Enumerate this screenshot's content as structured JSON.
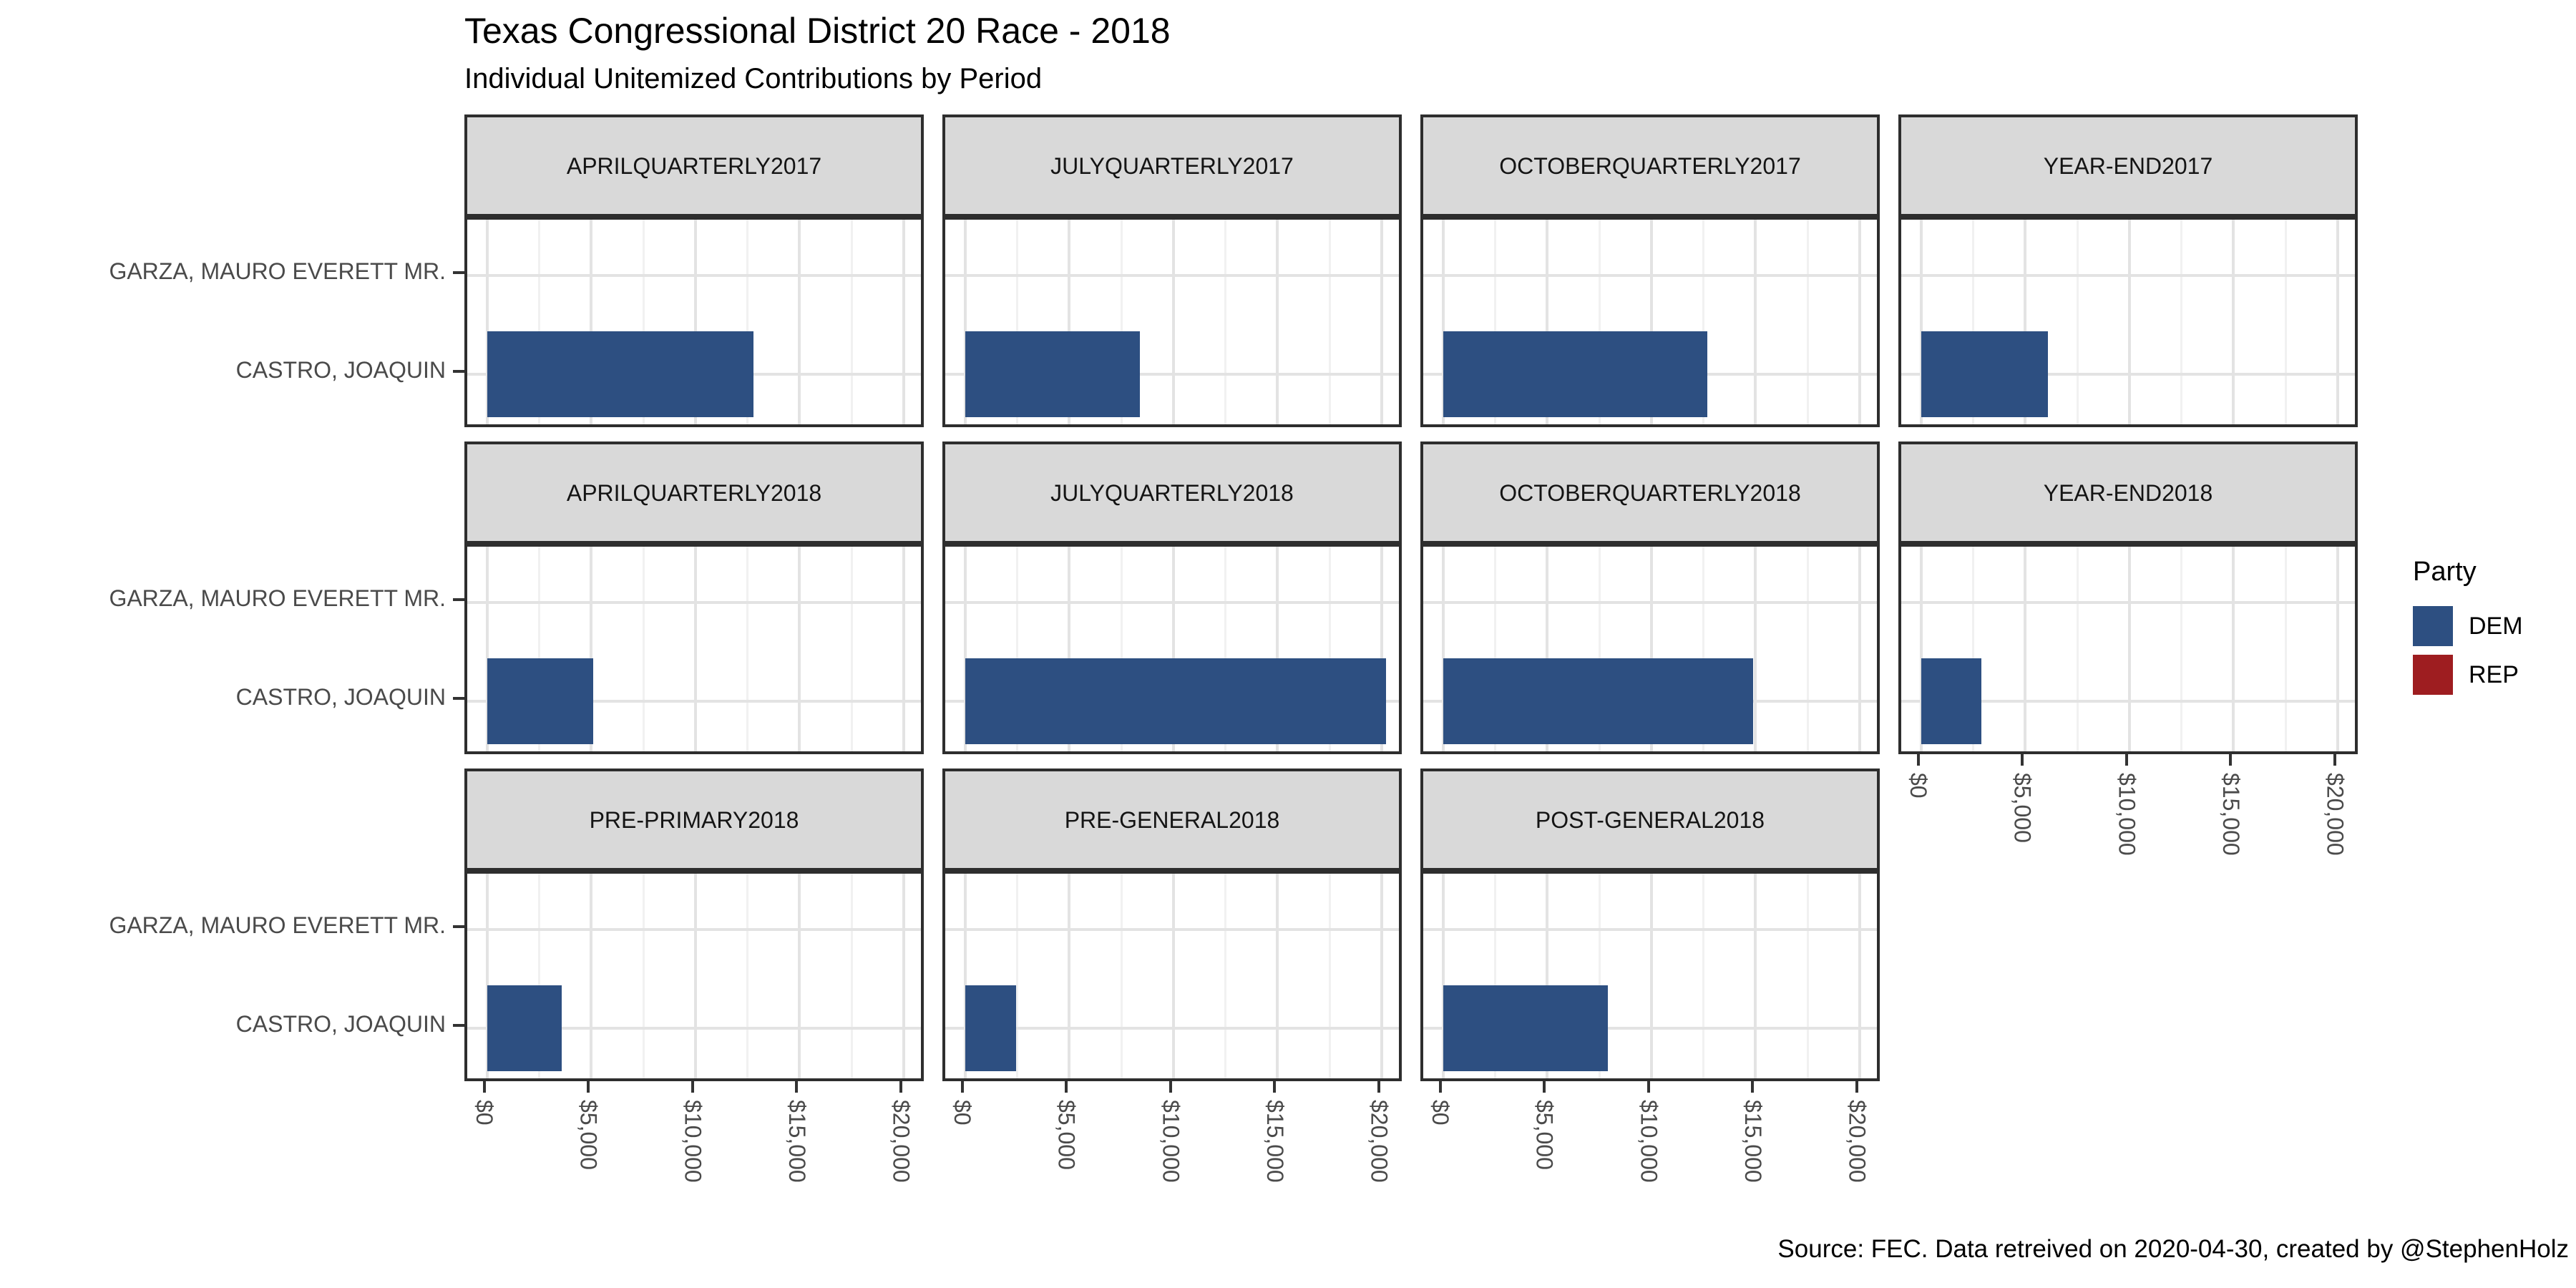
{
  "caption": "Source: FEC. Data retreived on 2020-04-30, created by @StephenHolz",
  "legend": {
    "title": "Party",
    "items": [
      {
        "label": "DEM",
        "color": "#2D4F81"
      },
      {
        "label": "REP",
        "color": "#9E1D20"
      }
    ]
  },
  "chart_data": {
    "type": "bar",
    "orientation": "horizontal",
    "title": "Texas Congressional District 20 Race - 2018",
    "subtitle": "Individual Unitemized Contributions by Period",
    "categories_top_to_bottom": [
      "GARZA, MAURO EVERETT MR.",
      "CASTRO, JOAQUIN"
    ],
    "party_colors": {
      "DEM": "#2D4F81",
      "REP": "#9E1D20"
    },
    "x_axis": {
      "tick_labels": [
        "$0",
        "$5,000",
        "$10,000",
        "$15,000",
        "$20,000"
      ],
      "tick_values": [
        0,
        5000,
        10000,
        15000,
        20000
      ],
      "minor_gridlines": [
        2500,
        7500,
        12500,
        17500
      ],
      "range": [
        -1010,
        21200
      ],
      "label_rotation_deg": 90
    },
    "grid": true,
    "legend_position": "right",
    "facet_grid": {
      "nrow": 3,
      "ncol": 4
    },
    "facets": [
      {
        "row": 0,
        "col": 0,
        "label": "APRIL QUARTERLY 2017",
        "values": {
          "GARZA, MAURO EVERETT MR.": 0,
          "CASTRO, JOAQUIN": 12800
        }
      },
      {
        "row": 0,
        "col": 1,
        "label": "JULY QUARTERLY 2017",
        "values": {
          "GARZA, MAURO EVERETT MR.": 0,
          "CASTRO, JOAQUIN": 8400
        }
      },
      {
        "row": 0,
        "col": 2,
        "label": "OCTOBER QUARTERLY 2017",
        "values": {
          "GARZA, MAURO EVERETT MR.": 0,
          "CASTRO, JOAQUIN": 12700
        }
      },
      {
        "row": 0,
        "col": 3,
        "label": "YEAR-END 2017",
        "values": {
          "GARZA, MAURO EVERETT MR.": 0,
          "CASTRO, JOAQUIN": 6100
        }
      },
      {
        "row": 1,
        "col": 0,
        "label": "APRIL QUARTERLY 2018",
        "values": {
          "GARZA, MAURO EVERETT MR.": 0,
          "CASTRO, JOAQUIN": 5100
        }
      },
      {
        "row": 1,
        "col": 1,
        "label": "JULY QUARTERLY 2018",
        "values": {
          "GARZA, MAURO EVERETT MR.": 0,
          "CASTRO, JOAQUIN": 20200
        }
      },
      {
        "row": 1,
        "col": 2,
        "label": "OCTOBER QUARTERLY 2018",
        "values": {
          "GARZA, MAURO EVERETT MR.": 0,
          "CASTRO, JOAQUIN": 14900
        }
      },
      {
        "row": 1,
        "col": 3,
        "label": "YEAR-END 2018",
        "values": {
          "GARZA, MAURO EVERETT MR.": 0,
          "CASTRO, JOAQUIN": 2900
        }
      },
      {
        "row": 2,
        "col": 0,
        "label": "PRE-PRIMARY 2018",
        "values": {
          "GARZA, MAURO EVERETT MR.": 0,
          "CASTRO, JOAQUIN": 3600
        }
      },
      {
        "row": 2,
        "col": 1,
        "label": "PRE-GENERAL 2018",
        "values": {
          "GARZA, MAURO EVERETT MR.": 0,
          "CASTRO, JOAQUIN": 2450
        }
      },
      {
        "row": 2,
        "col": 2,
        "label": "POST-GENERAL 2018",
        "values": {
          "GARZA, MAURO EVERETT MR.": 0,
          "CASTRO, JOAQUIN": 7900
        }
      }
    ],
    "visible_bar_party": "DEM"
  }
}
